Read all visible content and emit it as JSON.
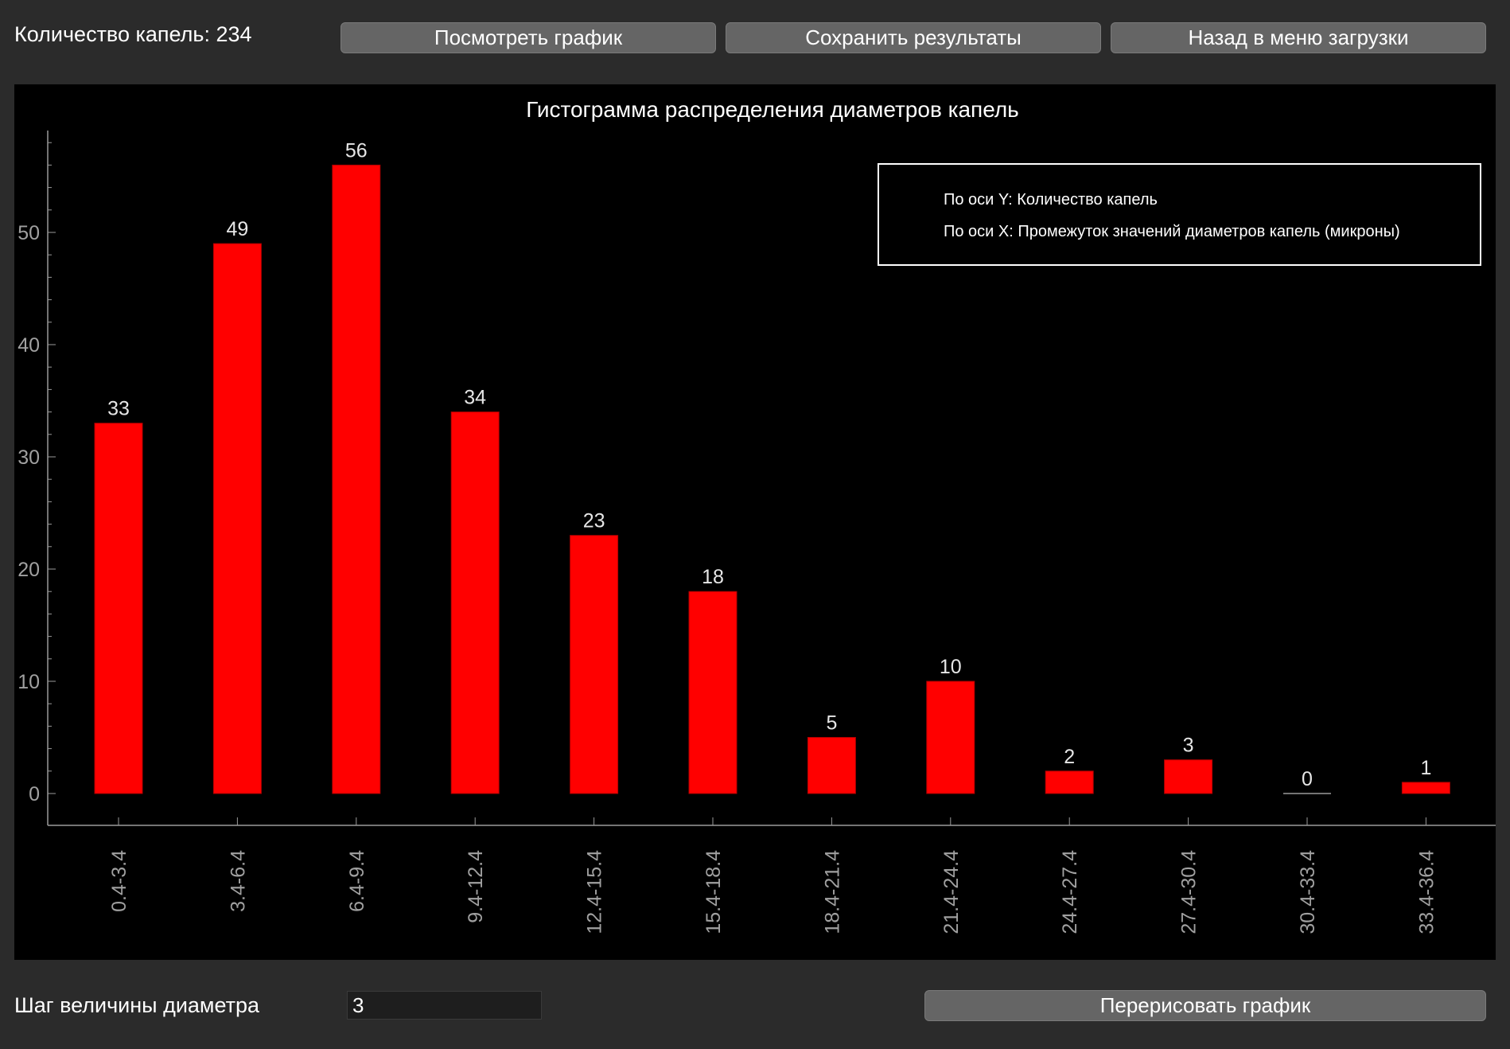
{
  "header": {
    "drop_count_text": "Количество капель: 234",
    "buttons": {
      "view_chart": "Посмотреть график",
      "save_results": "Сохранить результаты",
      "back_to_load_menu": "Назад в меню загрузки"
    }
  },
  "chart_data": {
    "type": "bar",
    "title": "Гистограмма распределения диаметров капель",
    "categories": [
      "0.4-3.4",
      "3.4-6.4",
      "6.4-9.4",
      "9.4-12.4",
      "12.4-15.4",
      "15.4-18.4",
      "18.4-21.4",
      "21.4-24.4",
      "24.4-27.4",
      "27.4-30.4",
      "30.4-33.4",
      "33.4-36.4"
    ],
    "values": [
      33,
      49,
      56,
      34,
      23,
      18,
      5,
      10,
      2,
      3,
      0,
      1
    ],
    "ylim": [
      0,
      60
    ],
    "yticks": [
      0,
      10,
      20,
      30,
      40,
      50
    ],
    "legend": {
      "position": "top-right",
      "lines": [
        "По оси Y: Количество капель",
        "По оси X: Промежуток значений диаметров капель (микроны)"
      ]
    },
    "colors": {
      "bar": "#ff0000",
      "background": "#000000",
      "axis": "#9a9a9a",
      "value_label": "#e6e6e6",
      "tick_label": "#a0a0a0"
    },
    "grid": false
  },
  "footer": {
    "step_label": "Шаг величины диаметра",
    "step_value": "3",
    "redraw_button": "Перерисовать график"
  }
}
